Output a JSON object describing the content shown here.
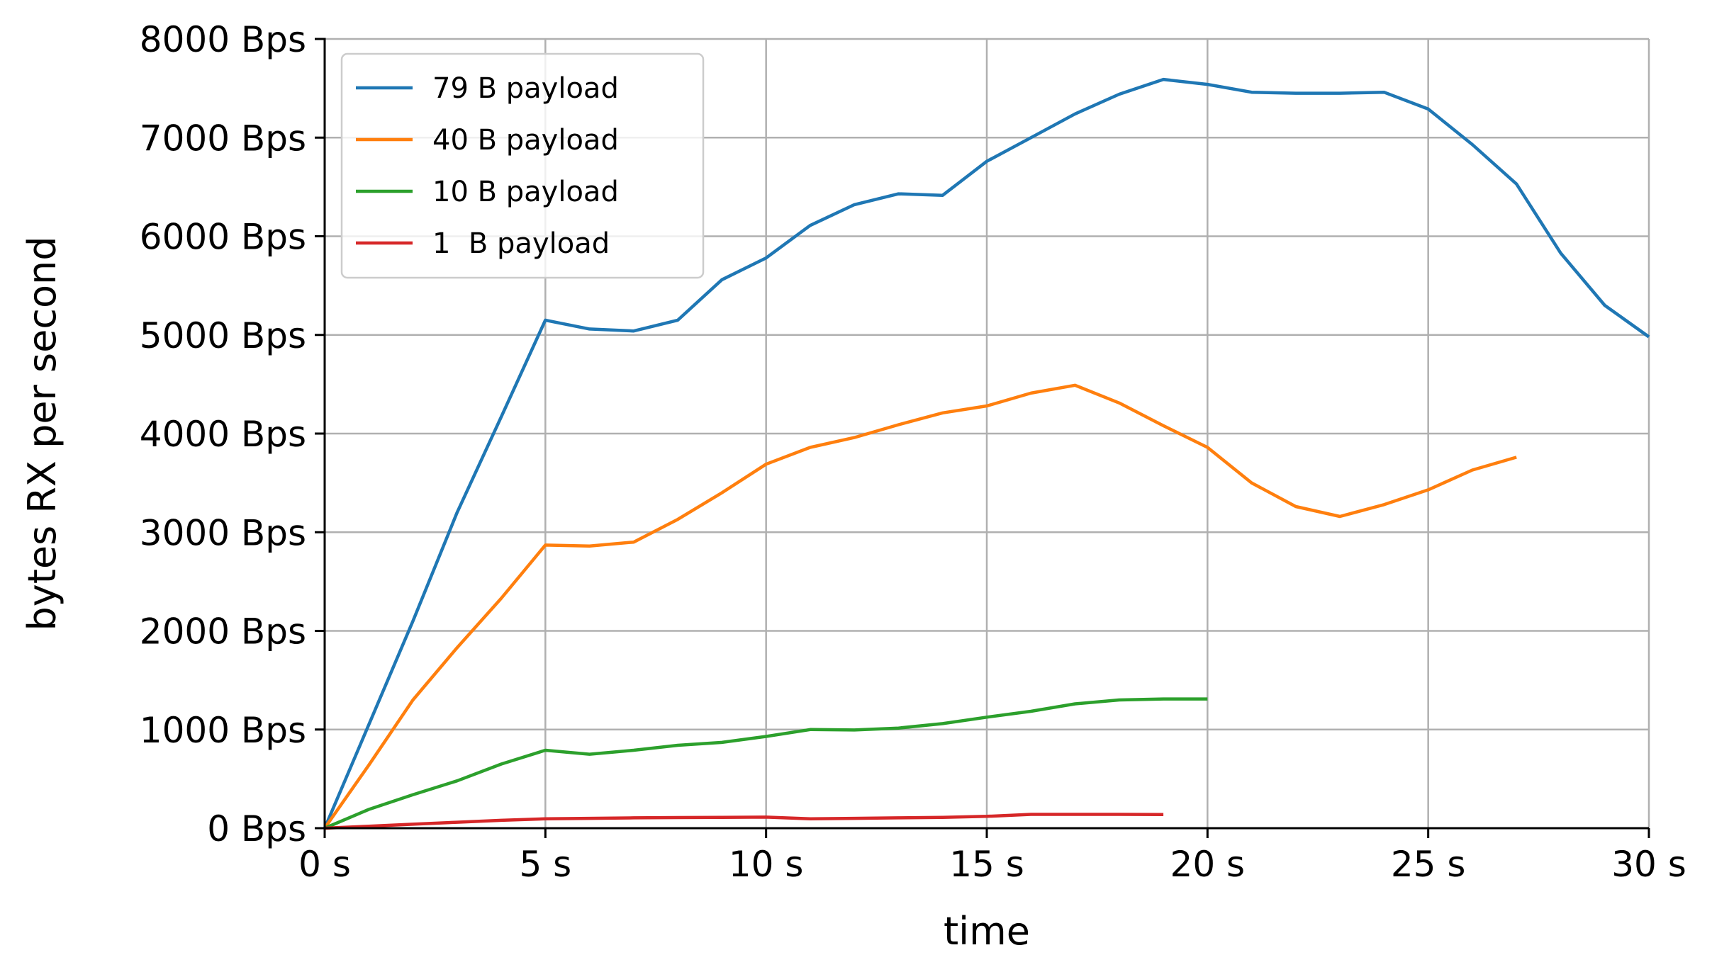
{
  "chart_data": {
    "type": "line",
    "title": "",
    "xlabel": "time",
    "ylabel": "bytes RX per second",
    "xlim": [
      0,
      30
    ],
    "ylim": [
      0,
      8000
    ],
    "x_ticks": [
      0,
      5,
      10,
      15,
      20,
      25,
      30
    ],
    "x_tick_labels": [
      "0 s",
      "5 s",
      "10 s",
      "15 s",
      "20 s",
      "25 s",
      "30 s"
    ],
    "y_ticks": [
      0,
      1000,
      2000,
      3000,
      4000,
      5000,
      6000,
      7000,
      8000
    ],
    "y_tick_labels": [
      "0 Bps",
      "1000 Bps",
      "2000 Bps",
      "3000 Bps",
      "4000 Bps",
      "5000 Bps",
      "6000 Bps",
      "7000 Bps",
      "8000 Bps"
    ],
    "grid": true,
    "legend_position": "top-left",
    "series": [
      {
        "name": "79 B payload",
        "color": "#1f77b4",
        "x": [
          0,
          1,
          2,
          3,
          4,
          5,
          6,
          7,
          8,
          9,
          10,
          11,
          12,
          13,
          14,
          15,
          16,
          17,
          18,
          19,
          20,
          21,
          22,
          23,
          24,
          25,
          26,
          27,
          28,
          29,
          30
        ],
        "values": [
          0,
          1050,
          2100,
          3200,
          4170,
          5150,
          5060,
          5040,
          5150,
          5560,
          5780,
          6110,
          6320,
          6430,
          6415,
          6760,
          7000,
          7240,
          7440,
          7590,
          7540,
          7460,
          7450,
          7450,
          7460,
          7290,
          6930,
          6530,
          5830,
          5300,
          4980
        ]
      },
      {
        "name": "40 B payload",
        "color": "#ff7f0e",
        "x": [
          0,
          1,
          2,
          3,
          4,
          5,
          6,
          7,
          8,
          9,
          10,
          11,
          12,
          13,
          14,
          15,
          16,
          17,
          18,
          19,
          20,
          21,
          22,
          23,
          24,
          25,
          26,
          27
        ],
        "values": [
          0,
          640,
          1300,
          1830,
          2330,
          2870,
          2860,
          2900,
          3130,
          3400,
          3690,
          3860,
          3960,
          4090,
          4210,
          4280,
          4410,
          4490,
          4310,
          4080,
          3860,
          3500,
          3260,
          3160,
          3280,
          3430,
          3630,
          3760
        ]
      },
      {
        "name": "10 B payload",
        "color": "#2ca02c",
        "x": [
          0,
          1,
          2,
          3,
          4,
          5,
          6,
          7,
          8,
          9,
          10,
          11,
          12,
          13,
          14,
          15,
          16,
          17,
          18,
          19,
          20
        ],
        "values": [
          0,
          190,
          340,
          480,
          650,
          790,
          750,
          790,
          840,
          870,
          930,
          1000,
          995,
          1015,
          1060,
          1125,
          1185,
          1260,
          1300,
          1310,
          1310
        ]
      },
      {
        "name": "1  B payload",
        "color": "#d62728",
        "x": [
          0,
          1,
          2,
          3,
          4,
          5,
          6,
          7,
          8,
          9,
          10,
          11,
          12,
          13,
          14,
          15,
          16,
          17,
          18,
          19
        ],
        "values": [
          0,
          20,
          40,
          60,
          80,
          95,
          100,
          105,
          108,
          110,
          112,
          95,
          100,
          105,
          110,
          120,
          140,
          140,
          140,
          138
        ]
      }
    ]
  }
}
